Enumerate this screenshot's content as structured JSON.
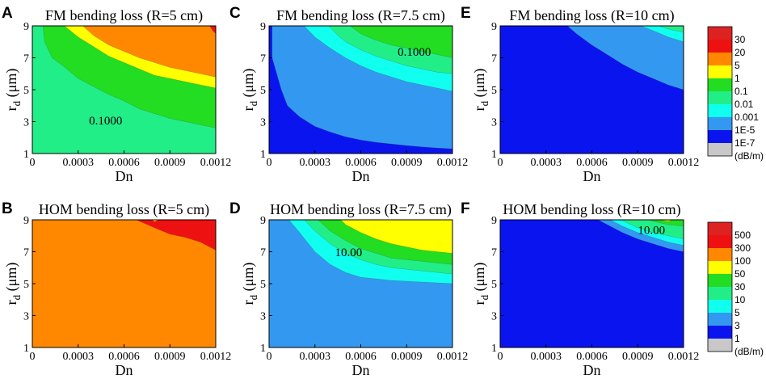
{
  "chart_data": [
    {
      "panel": "A",
      "type": "contour",
      "title": "FM bending loss (R=5 cm)",
      "xlabel": "Dn",
      "ylabel": "r_d (μm)",
      "xlim": [
        0,
        0.0012
      ],
      "ylim": [
        1,
        9
      ],
      "xticks": [
        "0",
        "0.0003",
        "0.0006",
        "0.0009",
        "0.0012"
      ],
      "yticks": [
        "1",
        "3",
        "5",
        "7",
        "9"
      ],
      "background_level": 0,
      "levels": [
        {
          "level": 0,
          "color": "#22EE88",
          "boundary": []
        },
        {
          "level": 4,
          "color": "#22DD22",
          "boundary": [
            [
              7e-05,
              9
            ],
            [
              8e-05,
              8
            ],
            [
              0.00013,
              7
            ],
            [
              0.0002,
              6.5
            ],
            [
              0.0003,
              5.7
            ],
            [
              0.0004,
              5.2
            ],
            [
              0.0005,
              4.7
            ],
            [
              0.0006,
              4.3
            ],
            [
              0.0007,
              3.8
            ],
            [
              0.0008,
              3.5
            ],
            [
              0.0009,
              3.2
            ],
            [
              0.001,
              3.0
            ],
            [
              0.0011,
              2.8
            ],
            [
              0.0012,
              2.6
            ]
          ]
        },
        {
          "level": 5,
          "color": "#FFFF00",
          "boundary": [
            [
              0.00021,
              9
            ],
            [
              0.0003,
              8.3
            ],
            [
              0.0004,
              7.7
            ],
            [
              0.0005,
              7.1
            ],
            [
              0.0006,
              6.7
            ],
            [
              0.0007,
              6.3
            ],
            [
              0.0008,
              5.9
            ],
            [
              0.0009,
              5.7
            ],
            [
              0.001,
              5.5
            ],
            [
              0.0011,
              5.3
            ],
            [
              0.0012,
              5.1
            ]
          ]
        },
        {
          "level": 6,
          "color": "#FF8800",
          "boundary": [
            [
              0.00033,
              9
            ],
            [
              0.0004,
              8.4
            ],
            [
              0.0005,
              7.8
            ],
            [
              0.0006,
              7.4
            ],
            [
              0.0007,
              7.0
            ],
            [
              0.0008,
              6.7
            ],
            [
              0.0009,
              6.4
            ],
            [
              0.001,
              6.2
            ],
            [
              0.0011,
              6.0
            ],
            [
              0.0012,
              5.8
            ]
          ]
        },
        {
          "level": 9,
          "color": "#EE1111",
          "boundary": [
            [
              0.00116,
              9
            ],
            [
              0.00118,
              8.7
            ],
            [
              0.0012,
              8.5
            ]
          ]
        }
      ],
      "contour_labels": [
        {
          "x": 0.00048,
          "y": 3.0,
          "text": "0.1000"
        }
      ]
    },
    {
      "panel": "C",
      "type": "contour",
      "title": "FM bending loss (R=7.5 cm)",
      "xlabel": "Dn",
      "ylabel": "r_d (μm)",
      "xlim": [
        0,
        0.0012
      ],
      "ylim": [
        1,
        9
      ],
      "xticks": [
        "0",
        "0.0003",
        "0.0006",
        "0.0009",
        "0.0012"
      ],
      "yticks": [
        "1",
        "3",
        "5",
        "7",
        "9"
      ],
      "background_level": 1,
      "levels": [
        {
          "level": 1,
          "color": "#0A14EE",
          "boundary": []
        },
        {
          "level": 2,
          "color": "#3399F0",
          "boundary": [
            [
              2e-05,
              9
            ],
            [
              2e-05,
              7
            ],
            [
              5e-05,
              6
            ],
            [
              8e-05,
              5
            ],
            [
              0.00012,
              4
            ],
            [
              0.0002,
              3.3
            ],
            [
              0.0003,
              2.7
            ],
            [
              0.0004,
              2.35
            ],
            [
              0.0005,
              2.05
            ],
            [
              0.0006,
              1.85
            ],
            [
              0.0007,
              1.7
            ],
            [
              0.0008,
              1.6
            ],
            [
              0.0009,
              1.5
            ],
            [
              0.001,
              1.42
            ],
            [
              0.0011,
              1.35
            ],
            [
              0.0012,
              1.3
            ]
          ]
        },
        {
          "level": 3,
          "color": "#11FFEE",
          "boundary": [
            [
              0.00023,
              9
            ],
            [
              0.0003,
              8.3
            ],
            [
              0.0004,
              7.6
            ],
            [
              0.0005,
              7.0
            ],
            [
              0.0006,
              6.5
            ],
            [
              0.0007,
              6.1
            ],
            [
              0.0008,
              5.8
            ],
            [
              0.0009,
              5.5
            ],
            [
              0.001,
              5.3
            ],
            [
              0.0011,
              5.1
            ],
            [
              0.0012,
              4.9
            ]
          ]
        },
        {
          "level": 4,
          "color": "#22EE88",
          "boundary": [
            [
              0.00039,
              9
            ],
            [
              0.00045,
              8.4
            ],
            [
              0.0005,
              8.0
            ],
            [
              0.0006,
              7.5
            ],
            [
              0.0007,
              7.1
            ],
            [
              0.0008,
              6.8
            ],
            [
              0.0009,
              6.5
            ],
            [
              0.001,
              6.3
            ],
            [
              0.0011,
              6.1
            ],
            [
              0.0012,
              6.0
            ]
          ]
        },
        {
          "level": 5,
          "color": "#22DD22",
          "boundary": [
            [
              0.00053,
              9
            ],
            [
              0.0006,
              8.5
            ],
            [
              0.0007,
              8.1
            ],
            [
              0.0008,
              7.8
            ],
            [
              0.0009,
              7.6
            ],
            [
              0.001,
              7.4
            ],
            [
              0.0011,
              7.2
            ],
            [
              0.0012,
              7.0
            ]
          ]
        }
      ],
      "contour_labels": [
        {
          "x": 0.00095,
          "y": 7.3,
          "text": "0.1000"
        }
      ]
    },
    {
      "panel": "E",
      "type": "contour",
      "title": "FM bending loss (R=10 cm)",
      "xlabel": "Dn",
      "ylabel": "r_d (μm)",
      "xlim": [
        0,
        0.0012
      ],
      "ylim": [
        1,
        9
      ],
      "xticks": [
        "0",
        "0.0003",
        "0.0006",
        "0.0009",
        "0.0012"
      ],
      "yticks": [
        "1",
        "3",
        "5",
        "7",
        "9"
      ],
      "background_level": 1,
      "levels": [
        {
          "level": 1,
          "color": "#0A14EE",
          "boundary": []
        },
        {
          "level": 2,
          "color": "#3399F0",
          "boundary": [
            [
              0.00044,
              9
            ],
            [
              0.0005,
              8.5
            ],
            [
              0.0006,
              7.8
            ],
            [
              0.0007,
              7.2
            ],
            [
              0.0008,
              6.6
            ],
            [
              0.0009,
              6.1
            ],
            [
              0.001,
              5.7
            ],
            [
              0.0011,
              5.3
            ],
            [
              0.0012,
              5.0
            ]
          ]
        },
        {
          "level": 3,
          "color": "#11FFEE",
          "boundary": [
            [
              0.00092,
              9
            ],
            [
              0.001,
              8.7
            ],
            [
              0.0011,
              8.3
            ],
            [
              0.0012,
              8.0
            ]
          ]
        },
        {
          "level": 4,
          "color": "#22EE88",
          "boundary": [
            [
              0.00104,
              9
            ],
            [
              0.0011,
              8.8
            ],
            [
              0.0012,
              8.6
            ]
          ]
        }
      ],
      "contour_labels": []
    },
    {
      "panel": "B",
      "type": "contour",
      "title": "HOM bending loss (R=5 cm)",
      "xlabel": "Dn",
      "ylabel": "r_d (μm)",
      "xlim": [
        0,
        0.0012
      ],
      "ylim": [
        1,
        9
      ],
      "xticks": [
        "0",
        "0.0003",
        "0.0006",
        "0.0009",
        "0.0012"
      ],
      "yticks": [
        "1",
        "3",
        "5",
        "7",
        "9"
      ],
      "background_level": 6,
      "levels": [
        {
          "level": 6,
          "color": "#FF8800",
          "boundary": []
        },
        {
          "level": 8,
          "color": "#EE1111",
          "boundary": [
            [
              0.00068,
              9
            ],
            [
              0.0008,
              8.5
            ],
            [
              0.0009,
              8.1
            ],
            [
              0.001,
              7.9
            ],
            [
              0.0011,
              7.6
            ],
            [
              0.0012,
              7.1
            ]
          ]
        },
        {
          "level": 7,
          "color": "#FFFF00",
          "boundary": [
            [
              0.00078,
              9
            ],
            [
              0.0008,
              8.9
            ],
            [
              0.00083,
              9
            ]
          ]
        }
      ],
      "contour_labels": []
    },
    {
      "panel": "D",
      "type": "contour",
      "title": "HOM bending loss (R=7.5 cm)",
      "xlabel": "Dn",
      "ylabel": "r_d (μm)",
      "xlim": [
        0,
        0.0012
      ],
      "ylim": [
        1,
        9
      ],
      "xticks": [
        "0",
        "0.0003",
        "0.0006",
        "0.0009",
        "0.0012"
      ],
      "yticks": [
        "1",
        "3",
        "5",
        "7",
        "9"
      ],
      "background_level": 2,
      "levels": [
        {
          "level": 2,
          "color": "#3399F0",
          "boundary": []
        },
        {
          "level": 3,
          "color": "#11FFEE",
          "boundary": [
            [
              0.00013,
              9
            ],
            [
              0.0002,
              8.2
            ],
            [
              0.0003,
              7.0
            ],
            [
              0.0004,
              6.2
            ],
            [
              0.0005,
              5.7
            ],
            [
              0.0006,
              5.4
            ],
            [
              0.0007,
              5.3
            ],
            [
              0.0008,
              5.2
            ],
            [
              0.0009,
              5.15
            ],
            [
              0.001,
              5.1
            ],
            [
              0.0011,
              5.05
            ],
            [
              0.0012,
              5.0
            ]
          ]
        },
        {
          "level": 4,
          "color": "#22EE88",
          "boundary": [
            [
              0.00023,
              9
            ],
            [
              0.0003,
              8.3
            ],
            [
              0.0004,
              7.5
            ],
            [
              0.0005,
              6.9
            ],
            [
              0.0006,
              6.5
            ],
            [
              0.0007,
              6.2
            ],
            [
              0.0008,
              6.0
            ],
            [
              0.0009,
              5.9
            ],
            [
              0.001,
              5.8
            ],
            [
              0.0011,
              5.7
            ],
            [
              0.0012,
              5.6
            ]
          ]
        },
        {
          "level": 5,
          "color": "#22DD22",
          "boundary": [
            [
              0.00032,
              9
            ],
            [
              0.0004,
              8.3
            ],
            [
              0.0005,
              7.7
            ],
            [
              0.0006,
              7.2
            ],
            [
              0.0007,
              6.9
            ],
            [
              0.0008,
              6.6
            ],
            [
              0.0009,
              6.5
            ],
            [
              0.001,
              6.4
            ],
            [
              0.0011,
              6.3
            ],
            [
              0.0012,
              6.2
            ]
          ]
        },
        {
          "level": 6,
          "color": "#FFFF00",
          "boundary": [
            [
              0.00047,
              9
            ],
            [
              0.0005,
              8.7
            ],
            [
              0.0006,
              8.2
            ],
            [
              0.0007,
              7.8
            ],
            [
              0.0008,
              7.5
            ],
            [
              0.0009,
              7.3
            ],
            [
              0.001,
              7.1
            ],
            [
              0.0011,
              7.0
            ],
            [
              0.0012,
              6.9
            ]
          ]
        }
      ],
      "contour_labels": [
        {
          "x": 0.00052,
          "y": 6.9,
          "text": "10.00"
        }
      ]
    },
    {
      "panel": "F",
      "type": "contour",
      "title": "HOM bending loss (R=10 cm)",
      "xlabel": "Dn",
      "ylabel": "r_d (μm)",
      "xlim": [
        0,
        0.0012
      ],
      "ylim": [
        1,
        9
      ],
      "xticks": [
        "0",
        "0.0003",
        "0.0006",
        "0.0009",
        "0.0012"
      ],
      "yticks": [
        "1",
        "3",
        "5",
        "7",
        "9"
      ],
      "background_level": 1,
      "levels": [
        {
          "level": 1,
          "color": "#0A14EE",
          "boundary": []
        },
        {
          "level": 2,
          "color": "#3399F0",
          "boundary": [
            [
              0.00064,
              9
            ],
            [
              0.0007,
              8.7
            ],
            [
              0.0008,
              8.2
            ],
            [
              0.0009,
              7.8
            ],
            [
              0.001,
              7.5
            ],
            [
              0.0011,
              7.2
            ],
            [
              0.0012,
              7.0
            ]
          ]
        },
        {
          "level": 3,
          "color": "#11FFEE",
          "boundary": [
            [
              0.00072,
              9
            ],
            [
              0.0008,
              8.6
            ],
            [
              0.0009,
              8.2
            ],
            [
              0.001,
              7.9
            ],
            [
              0.0011,
              7.6
            ],
            [
              0.0012,
              7.4
            ]
          ]
        },
        {
          "level": 4,
          "color": "#22EE88",
          "boundary": [
            [
              0.00079,
              9
            ],
            [
              0.0009,
              8.5
            ],
            [
              0.001,
              8.2
            ],
            [
              0.0011,
              8.0
            ],
            [
              0.0012,
              7.8
            ]
          ]
        },
        {
          "level": 5,
          "color": "#22DD22",
          "boundary": [
            [
              0.00098,
              9
            ],
            [
              0.001,
              8.9
            ],
            [
              0.0011,
              8.7
            ],
            [
              0.0012,
              8.6
            ]
          ]
        },
        {
          "level": 6,
          "color": "#FFFF00",
          "boundary": [
            [
              0.00104,
              9
            ],
            [
              0.0011,
              8.9
            ],
            [
              0.00113,
              9
            ]
          ]
        }
      ],
      "contour_labels": [
        {
          "x": 0.00099,
          "y": 8.3,
          "text": "10.00"
        }
      ]
    }
  ],
  "colorbars": [
    {
      "name": "fm",
      "unit": "(dB/m)",
      "colors": [
        "#C8C8C8",
        "#0A14EE",
        "#3399F0",
        "#11FFEE",
        "#22EE88",
        "#22DD22",
        "#FFFF00",
        "#FF8800",
        "#EE1111",
        "#DD2222"
      ],
      "labels": [
        "1E-7",
        "1E-5",
        "0.001",
        "0.01",
        "0.1",
        "1",
        "5",
        "20",
        "30"
      ]
    },
    {
      "name": "hom",
      "unit": "(dB/m)",
      "colors": [
        "#C8C8C8",
        "#0A14EE",
        "#3399F0",
        "#11FFEE",
        "#22EE88",
        "#22DD22",
        "#FFFF00",
        "#FF8800",
        "#EE1111",
        "#DD2222"
      ],
      "labels": [
        "1",
        "3",
        "5",
        "10",
        "30",
        "50",
        "100",
        "300",
        "500"
      ]
    }
  ]
}
